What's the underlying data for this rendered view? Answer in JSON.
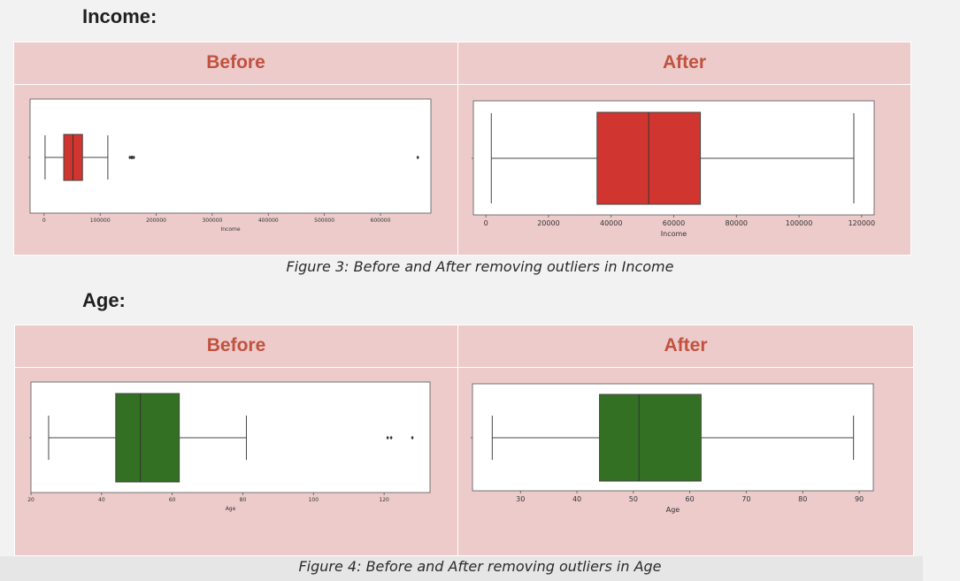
{
  "headings": {
    "income": "Income:",
    "age": "Age:"
  },
  "table_headers": {
    "income_before": "Before",
    "income_after": "After",
    "age_before": "Before",
    "age_after": "After"
  },
  "captions": {
    "income": "Figure 3: Before and After removing outliers in Income",
    "age": "Figure 4: Before and After removing outliers in Age"
  },
  "colors": {
    "income_box": "#d03530",
    "age_box": "#347024",
    "header_text": "#c0523f",
    "panel_bg": "#edcbcb"
  },
  "chart_data": [
    {
      "id": "income-before",
      "type": "boxplot",
      "orientation": "horizontal",
      "xlabel": "Income",
      "xlim": [
        -25000,
        690000
      ],
      "ticks": [
        0,
        100000,
        200000,
        300000,
        400000,
        500000,
        600000
      ],
      "tick_labels": [
        "0",
        "100000",
        "200000",
        "300000",
        "400000",
        "500000",
        "600000"
      ],
      "box": {
        "min": 1730,
        "q1": 35000,
        "median": 51500,
        "q3": 68500,
        "max": 113700
      },
      "outliers": [
        153000,
        156000,
        157000,
        160000,
        666666
      ],
      "color": "#d03530"
    },
    {
      "id": "income-after",
      "type": "boxplot",
      "orientation": "horizontal",
      "xlabel": "Income",
      "xlim": [
        -4000,
        124000
      ],
      "ticks": [
        0,
        20000,
        40000,
        60000,
        80000,
        100000,
        120000
      ],
      "tick_labels": [
        "0",
        "20000",
        "40000",
        "60000",
        "80000",
        "100000",
        "120000"
      ],
      "box": {
        "min": 1730,
        "q1": 35500,
        "median": 52000,
        "q3": 68500,
        "max": 117500
      },
      "outliers": [],
      "color": "#d03530"
    },
    {
      "id": "age-before",
      "type": "boxplot",
      "orientation": "horizontal",
      "xlabel": "Age",
      "xlim": [
        20,
        133
      ],
      "ticks": [
        20,
        40,
        60,
        80,
        100,
        120
      ],
      "tick_labels": [
        "20",
        "40",
        "60",
        "80",
        "100",
        "120"
      ],
      "box": {
        "min": 25,
        "q1": 44,
        "median": 51,
        "q3": 62,
        "max": 81
      },
      "outliers": [
        121,
        122,
        128
      ],
      "color": "#347024"
    },
    {
      "id": "age-after",
      "type": "boxplot",
      "orientation": "horizontal",
      "xlabel": "Age",
      "xlim": [
        21.5,
        92.5
      ],
      "ticks": [
        30,
        40,
        50,
        60,
        70,
        80,
        90
      ],
      "tick_labels": [
        "30",
        "40",
        "50",
        "60",
        "70",
        "80",
        "90"
      ],
      "box": {
        "min": 25,
        "q1": 44,
        "median": 51,
        "q3": 62,
        "max": 89
      },
      "outliers": [],
      "color": "#347024"
    }
  ]
}
